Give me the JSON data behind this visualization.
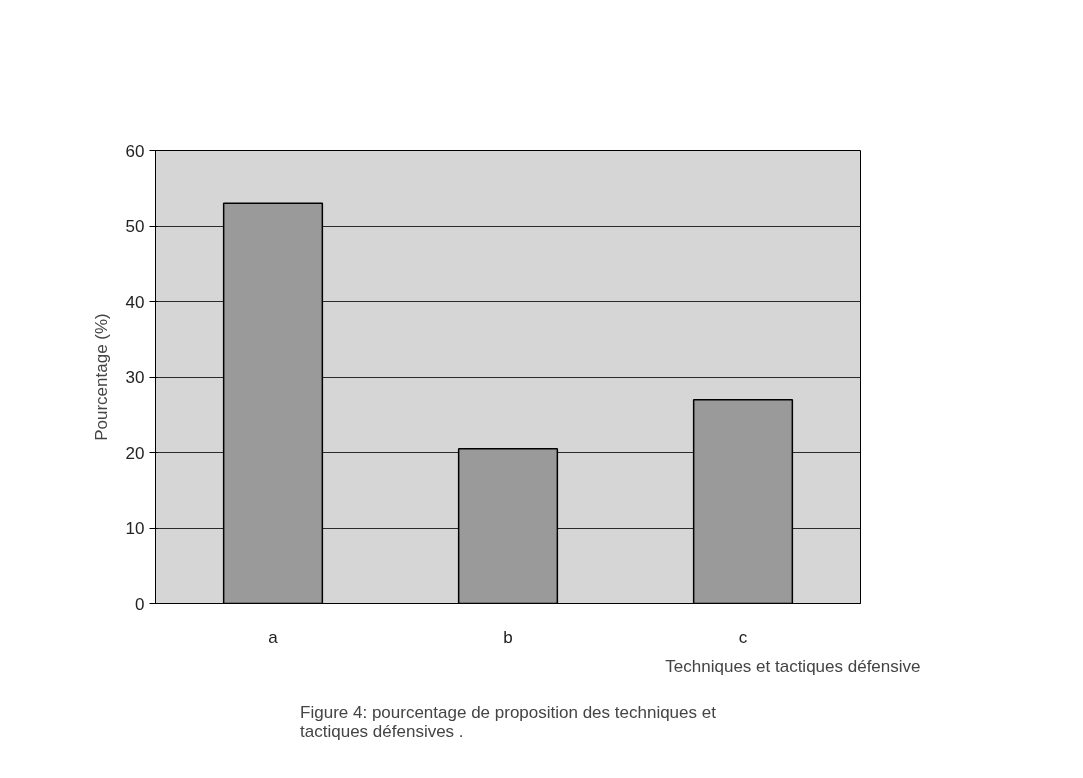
{
  "chart_data": {
    "type": "bar",
    "categories": [
      "a",
      "b",
      "c"
    ],
    "values": [
      53,
      20.5,
      27
    ],
    "color": "#9a9a9a",
    "ylim": [
      0,
      60
    ],
    "yticks": [
      0,
      10,
      20,
      30,
      40,
      50,
      60
    ],
    "grid": "y",
    "ylabel": "Pourcentage (%)",
    "xlabel": "Techniques et tactiques défensive",
    "annotations": [
      "Figure 4: pourcentage de proposition des techniques et\ntactiques défensives ."
    ]
  }
}
